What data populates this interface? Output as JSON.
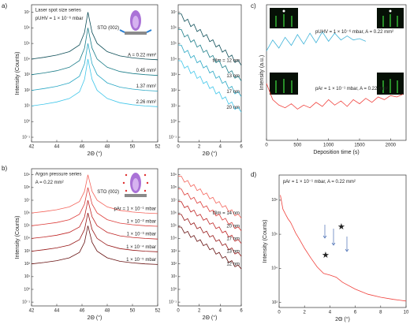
{
  "chart_data": [
    {
      "type": "line",
      "panel": "a)",
      "ylabel": "Intensity (Counts)",
      "xlabel": "2Θ (°)",
      "log_y": true,
      "annotations": [
        "Laser spot size series",
        "pUHV = 1 × 10⁻⁶ mbar",
        "STO (002)"
      ],
      "xlim": [
        42,
        52
      ],
      "xticks": [
        42,
        44,
        46,
        48,
        50,
        52
      ],
      "ylim": [
        0.05,
        30000000
      ],
      "yticks": [
        {
          "value": 0.1,
          "label": "10⁻¹"
        },
        {
          "value": 1,
          "label": "10⁰"
        },
        {
          "value": 10,
          "label": "10¹"
        },
        {
          "value": 100,
          "label": "10²"
        },
        {
          "value": 1000,
          "label": "10³"
        },
        {
          "value": 10000,
          "label": "10⁴"
        },
        {
          "value": 100000,
          "label": "10⁵"
        },
        {
          "value": 1000000,
          "label": "10⁶"
        },
        {
          "value": 10000000,
          "label": "10⁷"
        }
      ],
      "x": [
        42,
        43,
        44,
        45,
        45.8,
        46.2,
        46.47,
        46.8,
        47.2,
        48,
        49,
        50,
        51,
        52
      ],
      "series": [
        {
          "name": "A = 0.22 mm²",
          "color": "#0d4d57",
          "values": [
            10000.0,
            13000.0,
            18000.0,
            30000.0,
            80000.0,
            500000.0,
            10000000.0,
            500000.0,
            100000.0,
            30000.0,
            16000.0,
            12000.0,
            10000.0,
            9000.0
          ]
        },
        {
          "name": "0.45 mm²",
          "color": "#1a7c88",
          "values": [
            1000.0,
            1300.0,
            1800.0,
            3000.0,
            8000.0,
            50000.0,
            1000000.0,
            50000.0,
            10000.0,
            3000.0,
            1600.0,
            1200.0,
            1000.0,
            900.0
          ]
        },
        {
          "name": "1.37 mm²",
          "color": "#27a6c3",
          "values": [
            100.0,
            130.0,
            180.0,
            300.0,
            800.0,
            5000.0,
            100000.0,
            5000.0,
            1000.0,
            300.0,
            160.0,
            120.0,
            100.0,
            90
          ]
        },
        {
          "name": "2.26 mm²",
          "color": "#3fc6ea",
          "values": [
            10,
            13,
            18,
            30,
            80,
            500.0,
            10000.0,
            500.0,
            100.0,
            30,
            16,
            12,
            10,
            9
          ]
        }
      ]
    },
    {
      "type": "line",
      "xlabel": "2Θ (°)",
      "log_y": true,
      "xlim": [
        0,
        6
      ],
      "xticks": [
        0,
        2,
        4,
        6
      ],
      "ylim": [
        0.05,
        30000000
      ],
      "yticks": [
        {
          "value": 0.1,
          "label": "10⁻¹"
        },
        {
          "value": 1,
          "label": "10⁰"
        },
        {
          "value": 10,
          "label": "10¹"
        },
        {
          "value": 100,
          "label": "10²"
        },
        {
          "value": 1000,
          "label": "10³"
        },
        {
          "value": 10000,
          "label": "10⁴"
        },
        {
          "value": 100000,
          "label": "10⁵"
        },
        {
          "value": 1000000,
          "label": "10⁶"
        },
        {
          "value": 10000000,
          "label": "10⁷"
        }
      ],
      "x": [
        0,
        0.3,
        0.6,
        0.9,
        1.2,
        1.5,
        1.8,
        2.1,
        2.4,
        2.7,
        3,
        3.3,
        3.6,
        3.9,
        4.2,
        4.5,
        4.8,
        5.1,
        5.4,
        5.7,
        6
      ],
      "series": [
        {
          "name": "tfilm = 12 nm",
          "color": "#0d4d57",
          "values": [
            8000000.0,
            7700000.0,
            2600000.0,
            3600000.0,
            1200000.0,
            1700000.0,
            580000.0,
            790000.0,
            270000.0,
            370000.0,
            130000.0,
            170000.0,
            59000.0,
            80000.0,
            28000.0,
            38000.0,
            13000.0,
            18000.0,
            6000.0,
            8200.0,
            4000.0
          ]
        },
        {
          "name": "13 nm",
          "color": "#1a7c88",
          "values": [
            800000.0,
            770000.0,
            260000.0,
            360000.0,
            120000.0,
            170000.0,
            58000.0,
            79000.0,
            27000.0,
            37000.0,
            13000.0,
            17000.0,
            5900.0,
            8000.0,
            2800.0,
            3800.0,
            1300.0,
            1800.0,
            600.0,
            820.0,
            400.0
          ]
        },
        {
          "name": "17 nm",
          "color": "#27a6c3",
          "values": [
            80000.0,
            77000.0,
            26000.0,
            36000.0,
            12000.0,
            17000.0,
            5800.0,
            7900.0,
            2700.0,
            3700.0,
            1300.0,
            1700.0,
            590.0,
            800.0,
            280.0,
            380.0,
            130.0,
            180.0,
            60,
            82,
            40
          ]
        },
        {
          "name": "20 nm",
          "color": "#3fc6ea",
          "values": [
            8000.0,
            7700.0,
            2600.0,
            3600.0,
            1200.0,
            1700.0,
            580.0,
            790.0,
            270.0,
            370.0,
            130.0,
            170.0,
            59,
            80,
            28,
            38,
            13,
            18,
            6,
            8.2,
            4
          ]
        }
      ]
    },
    {
      "type": "line",
      "panel": "c)",
      "ylabel": "Intensity (a.u.)",
      "xlabel": "Deposition time (s)",
      "log_y": false,
      "xlim": [
        0,
        2250
      ],
      "xticks": [
        0,
        500,
        1000,
        1500,
        2000
      ],
      "ylim": [
        0,
        1
      ],
      "yticks": [],
      "x": [
        0,
        100,
        200,
        300,
        400,
        500,
        600,
        700,
        800,
        900,
        1000,
        1100,
        1200,
        1300,
        1400,
        1500,
        1600,
        1700,
        1800,
        1900,
        2000,
        2100,
        2200
      ],
      "series": [
        {
          "name": "pUHV = 1 × 10⁻⁶ mbar, A = 0.22 mm²",
          "color": "#3fb3d9",
          "values": [
            0.66,
            0.74,
            0.68,
            0.76,
            0.7,
            0.78,
            0.71,
            0.79,
            0.72,
            0.8,
            0.73,
            0.79,
            0.74,
            0.77,
            0.74,
            0.75,
            0.73,
            null,
            null,
            null,
            null,
            null,
            null
          ]
        },
        {
          "name": "pAr = 1 × 10⁻¹ mbar, A = 0.22 mm²",
          "color": "#f0413c",
          "values": [
            0.42,
            0.3,
            0.26,
            0.24,
            0.27,
            0.23,
            0.26,
            0.24,
            0.28,
            0.25,
            0.3,
            0.26,
            0.29,
            0.25,
            0.3,
            0.27,
            0.31,
            0.28,
            0.32,
            0.3,
            0.33,
            0.32,
            0.34
          ]
        }
      ]
    },
    {
      "type": "line",
      "panel": "b)",
      "ylabel": "Intensity (Counts)",
      "xlabel": "2Θ (°)",
      "log_y": true,
      "annotations": [
        "Argon pressure series",
        "A = 0.22 mm²",
        "STO (002)"
      ],
      "xlim": [
        42,
        52
      ],
      "xticks": [
        42,
        44,
        46,
        48,
        50,
        52
      ],
      "ylim": [
        0.05,
        3000000000
      ],
      "yticks": [
        {
          "value": 0.1,
          "label": "10⁻¹"
        },
        {
          "value": 1,
          "label": "10⁰"
        },
        {
          "value": 10,
          "label": "10¹"
        },
        {
          "value": 100,
          "label": "10²"
        },
        {
          "value": 1000,
          "label": "10³"
        },
        {
          "value": 10000,
          "label": "10⁴"
        },
        {
          "value": 100000,
          "label": "10⁵"
        },
        {
          "value": 1000000,
          "label": "10⁶"
        },
        {
          "value": 10000000,
          "label": "10⁷"
        },
        {
          "value": 100000000,
          "label": "10⁸"
        },
        {
          "value": 1000000000,
          "label": "10⁹"
        }
      ],
      "x": [
        42,
        43,
        44,
        45,
        45.8,
        46.2,
        46.47,
        46.8,
        47.2,
        48,
        49,
        50,
        51,
        52
      ],
      "series": [
        {
          "name": "pAr = 1 × 10⁻¹ mbar",
          "color": "#f4635a",
          "values": [
            1000000.0,
            1300000.0,
            1800000.0,
            3000000.0,
            8000000.0,
            50000000.0,
            1000000000.0,
            50000000.0,
            10000000.0,
            3000000.0,
            1600000.0,
            1200000.0,
            1000000.0,
            900000.0
          ]
        },
        {
          "name": "1 × 10⁻² mbar",
          "color": "#dd3d3a",
          "values": [
            100000.0,
            130000.0,
            180000.0,
            300000.0,
            800000.0,
            5000000.0,
            100000000.0,
            5000000.0,
            1000000.0,
            300000.0,
            160000.0,
            120000.0,
            100000.0,
            90000.0
          ]
        },
        {
          "name": "1 × 10⁻³ mbar",
          "color": "#bf2424",
          "values": [
            10000.0,
            13000.0,
            18000.0,
            30000.0,
            80000.0,
            500000.0,
            10000000.0,
            500000.0,
            100000.0,
            30000.0,
            16000.0,
            12000.0,
            10000.0,
            9000.0
          ]
        },
        {
          "name": "1 × 10⁻⁴ mbar",
          "color": "#951414",
          "values": [
            1000.0,
            1300.0,
            1800.0,
            3000.0,
            8000.0,
            50000.0,
            1000000.0,
            50000.0,
            10000.0,
            3000.0,
            1600.0,
            1200.0,
            1000.0,
            900.0
          ]
        },
        {
          "name": "1 × 10⁻⁵ mbar",
          "color": "#661010",
          "values": [
            100.0,
            130.0,
            180.0,
            300.0,
            800.0,
            5000.0,
            100000.0,
            5000.0,
            1000.0,
            300.0,
            160.0,
            120.0,
            100.0,
            90
          ]
        }
      ]
    },
    {
      "type": "line",
      "xlabel": "2Θ (°)",
      "log_y": true,
      "xlim": [
        0,
        6
      ],
      "xticks": [
        0,
        2,
        4,
        6
      ],
      "ylim": [
        0.05,
        3000000000
      ],
      "yticks": [
        {
          "value": 0.1,
          "label": "10⁻¹"
        },
        {
          "value": 1,
          "label": "10⁰"
        },
        {
          "value": 10,
          "label": "10¹"
        },
        {
          "value": 100,
          "label": "10²"
        },
        {
          "value": 1000,
          "label": "10³"
        },
        {
          "value": 10000,
          "label": "10⁴"
        },
        {
          "value": 100000,
          "label": "10⁵"
        },
        {
          "value": 1000000,
          "label": "10⁶"
        },
        {
          "value": 10000000,
          "label": "10⁷"
        },
        {
          "value": 100000000,
          "label": "10⁸"
        },
        {
          "value": 1000000000,
          "label": "10⁹"
        }
      ],
      "x": [
        0,
        0.3,
        0.6,
        0.9,
        1.2,
        1.5,
        1.8,
        2.1,
        2.4,
        2.7,
        3,
        3.3,
        3.6,
        3.9,
        4.2,
        4.5,
        4.8,
        5.1,
        5.4,
        5.7,
        6
      ],
      "series": [
        {
          "name": "tfilm = 14 nm",
          "color": "#f4635a",
          "values": [
            800000000.0,
            770000000.0,
            260000000.0,
            360000000.0,
            120000000.0,
            170000000.0,
            58000000.0,
            79000000.0,
            27000000.0,
            37000000.0,
            13000000.0,
            17000000.0,
            5900000.0,
            8000000.0,
            2800000.0,
            3800000.0,
            1300000.0,
            1800000.0,
            600000.0,
            820000.0,
            400000.0
          ]
        },
        {
          "name": "20 nm",
          "color": "#dd3d3a",
          "values": [
            80000000.0,
            77000000.0,
            26000000.0,
            36000000.0,
            12000000.0,
            17000000.0,
            5800000.0,
            7900000.0,
            2700000.0,
            3700000.0,
            1300000.0,
            1700000.0,
            590000.0,
            800000.0,
            280000.0,
            380000.0,
            130000.0,
            180000.0,
            60000.0,
            82000.0,
            40000.0
          ]
        },
        {
          "name": "17 nm",
          "color": "#bf2424",
          "values": [
            8000000.0,
            7700000.0,
            2600000.0,
            3600000.0,
            1200000.0,
            1700000.0,
            580000.0,
            790000.0,
            270000.0,
            370000.0,
            130000.0,
            170000.0,
            59000.0,
            80000.0,
            28000.0,
            38000.0,
            13000.0,
            18000.0,
            6000.0,
            8200.0,
            4000.0
          ]
        },
        {
          "name": "13 nm",
          "color": "#951414",
          "values": [
            800000.0,
            770000.0,
            260000.0,
            360000.0,
            120000.0,
            170000.0,
            58000.0,
            79000.0,
            27000.0,
            37000.0,
            13000.0,
            17000.0,
            5900.0,
            8000.0,
            2800.0,
            3800.0,
            1300.0,
            1800.0,
            600.0,
            820.0,
            400.0
          ]
        },
        {
          "name": "12 nm",
          "color": "#661010",
          "values": [
            80000.0,
            77000.0,
            26000.0,
            36000.0,
            12000.0,
            17000.0,
            5800.0,
            7900.0,
            2700.0,
            3700.0,
            1300.0,
            1700.0,
            590.0,
            800.0,
            280.0,
            380.0,
            130.0,
            180.0,
            60,
            82,
            40
          ]
        }
      ]
    },
    {
      "type": "line",
      "panel": "d)",
      "ylabel": "Intensity (Counts)",
      "xlabel": "2Θ (°)",
      "log_y": true,
      "annotations": [
        "pAr = 1 × 10⁻¹ mbar, A = 0.22 mm²"
      ],
      "xlim": [
        0,
        10
      ],
      "xticks": [
        0,
        2,
        4,
        6,
        8,
        10
      ],
      "ylim": [
        50,
        3000000000
      ],
      "yticks": [
        {
          "value": 100,
          "label": "10²"
        },
        {
          "value": 10000,
          "label": "10⁴"
        },
        {
          "value": 1000000,
          "label": "10⁶"
        },
        {
          "value": 100000000,
          "label": "10⁸"
        }
      ],
      "x": [
        0.1,
        0.3,
        0.5,
        0.7,
        0.9,
        1.1,
        1.3,
        1.6,
        2,
        2.5,
        3,
        3.5,
        4,
        4.5,
        5,
        6,
        7,
        8,
        9,
        10
      ],
      "series": [
        {
          "color": "#f0413c",
          "values": [
            200000000.0,
            30000000.0,
            15000000.0,
            8000000.0,
            5000000.0,
            2500000.0,
            1200000.0,
            500000.0,
            150000.0,
            40000.0,
            12000.0,
            5000.0,
            4000.0,
            3000.0,
            1500.0,
            600.0,
            300.0,
            200.0,
            150.0,
            120.0
          ]
        }
      ]
    }
  ]
}
